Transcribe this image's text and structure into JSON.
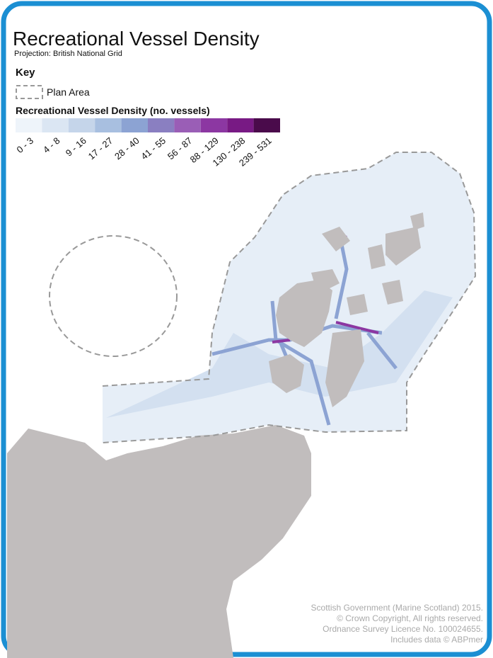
{
  "header": {
    "title": "Recreational Vessel Density",
    "projection": "Projection: British National Grid"
  },
  "key": {
    "title": "Key",
    "plan_area": "Plan Area",
    "legend_title": "Recreational Vessel Density (no. vessels)",
    "bins": [
      {
        "label": "0 - 3",
        "color": "#eef4fa"
      },
      {
        "label": "4 - 8",
        "color": "#dbe6f3"
      },
      {
        "label": "9 - 16",
        "color": "#c5d5ea"
      },
      {
        "label": "17 - 27",
        "color": "#a8bfe0"
      },
      {
        "label": "28 - 40",
        "color": "#8ca3d3"
      },
      {
        "label": "41 - 55",
        "color": "#8a7fc1"
      },
      {
        "label": "56 - 87",
        "color": "#9a5eb6"
      },
      {
        "label": "88 - 129",
        "color": "#8c37a2"
      },
      {
        "label": "130 - 238",
        "color": "#781a84"
      },
      {
        "label": "239 - 531",
        "color": "#4a0b4b"
      }
    ]
  },
  "credits": [
    "Scottish Government (Marine Scotland) 2015.",
    "© Crown Copyright, All rights reserved.",
    "Ordnance Survey Licence No. 100024655.",
    "Includes data © ABPmer"
  ]
}
